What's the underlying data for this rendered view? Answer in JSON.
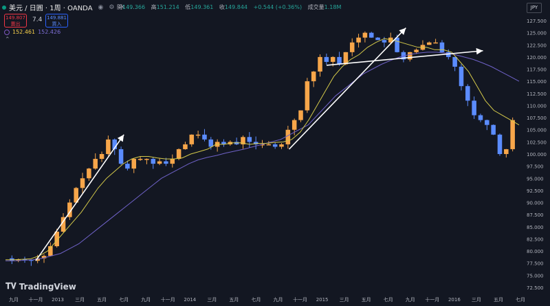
{
  "header": {
    "symbol": "美元 / 日圓 · 1周 · OANDA",
    "ohlc": [
      {
        "k": "開",
        "v": "149.366"
      },
      {
        "k": "高",
        "v": "151.214"
      },
      {
        "k": "低",
        "v": "149.361"
      },
      {
        "k": "收",
        "v": "149.844"
      },
      {
        "k": "",
        "v": "+0.544 (+0.36%)"
      },
      {
        "k": "成交量",
        "v": "1.18M"
      }
    ],
    "currency": "JPY"
  },
  "trade": {
    "sell_price": "149.807",
    "sell_label": "賣出",
    "spread": "7.4",
    "buy_price": "149.881",
    "buy_label": "買入"
  },
  "indicators": {
    "ma_fast": "152.461",
    "ma_slow": "152.426"
  },
  "logo": "TradingView",
  "colors": {
    "up": "#f7a64a",
    "down": "#5b8cff",
    "ma_fast": "#d4c94a",
    "ma_slow": "#6f62c8",
    "arrow": "#ffffff"
  },
  "chart_data": {
    "type": "candlestick",
    "y_ticks": [
      "127.500",
      "125.000",
      "122.500",
      "120.000",
      "117.500",
      "115.000",
      "112.500",
      "110.000",
      "107.500",
      "105.000",
      "102.500",
      "100.000",
      "97.500",
      "95.000",
      "92.500",
      "90.000",
      "87.500",
      "85.000",
      "82.500",
      "80.000",
      "77.500",
      "75.000",
      "72.500"
    ],
    "x_ticks": [
      "九月",
      "十一月",
      "2013",
      "三月",
      "五月",
      "七月",
      "九月",
      "十一月",
      "2014",
      "三月",
      "五月",
      "七月",
      "九月",
      "十一月",
      "2015",
      "三月",
      "五月",
      "七月",
      "九月",
      "十一月",
      "2016",
      "三月",
      "五月",
      "七月"
    ],
    "ylim": [
      72.5,
      127.5
    ],
    "close_path": [
      78.5,
      78,
      78.3,
      78.2,
      78.0,
      78.5,
      79,
      81,
      84,
      87,
      90,
      93,
      95,
      97,
      99,
      100,
      103,
      101,
      98,
      97,
      99,
      99,
      99,
      98,
      98.5,
      98,
      99,
      101,
      102,
      104,
      104,
      103,
      101.5,
      102.5,
      102,
      102.5,
      102,
      103.5,
      102.5,
      102,
      102,
      102,
      101.5,
      102,
      105,
      107,
      109,
      115,
      117,
      120,
      119,
      120,
      118.5,
      121,
      123,
      124,
      125,
      124,
      123.5,
      123,
      124,
      121,
      119.5,
      121,
      121.5,
      122.5,
      123,
      123,
      121,
      120,
      118,
      114,
      111,
      108,
      107,
      106,
      104,
      100,
      101,
      107
    ],
    "ma_fast": [
      78.2,
      78.2,
      78.3,
      78.4,
      79,
      80,
      82,
      84,
      86,
      88,
      90.5,
      93,
      95,
      96.5,
      98,
      99,
      99.5,
      99.5,
      99.2,
      99,
      99,
      99.2,
      100,
      100.5,
      101,
      102,
      102,
      102.3,
      102.3,
      102,
      102.2,
      102.2,
      102.4,
      102.5,
      103,
      104.5,
      107,
      110,
      113,
      116,
      118,
      119.5,
      120.5,
      122,
      123,
      123.8,
      123.5,
      123,
      122.5,
      122,
      122,
      121.5,
      121.5,
      121,
      119,
      117,
      114,
      111,
      109,
      108,
      107,
      106
    ],
    "ma_slow": [
      78,
      78,
      78.1,
      78.2,
      78.5,
      79,
      79.5,
      80.5,
      81.5,
      83,
      84.5,
      86,
      87.5,
      89,
      90.5,
      92,
      93.5,
      95,
      96,
      97,
      98,
      98.8,
      99.3,
      99.7,
      100.2,
      100.6,
      101,
      101.5,
      102,
      102.5,
      103,
      104,
      105,
      106,
      108,
      110,
      112,
      113.5,
      115,
      116.5,
      117.5,
      118.5,
      119.3,
      120,
      120.5,
      120.8,
      121,
      121,
      120.8,
      120.5,
      120,
      119.5,
      118.8,
      118,
      117,
      116,
      115
    ],
    "arrows": [
      {
        "from": [
          1,
          78
        ],
        "to": [
          5,
          104
        ]
      },
      {
        "from": [
          12.5,
          101
        ],
        "to": [
          17.8,
          126
        ]
      },
      {
        "from": [
          14.2,
          118.3
        ],
        "to": [
          21.3,
          121.3
        ]
      }
    ]
  }
}
